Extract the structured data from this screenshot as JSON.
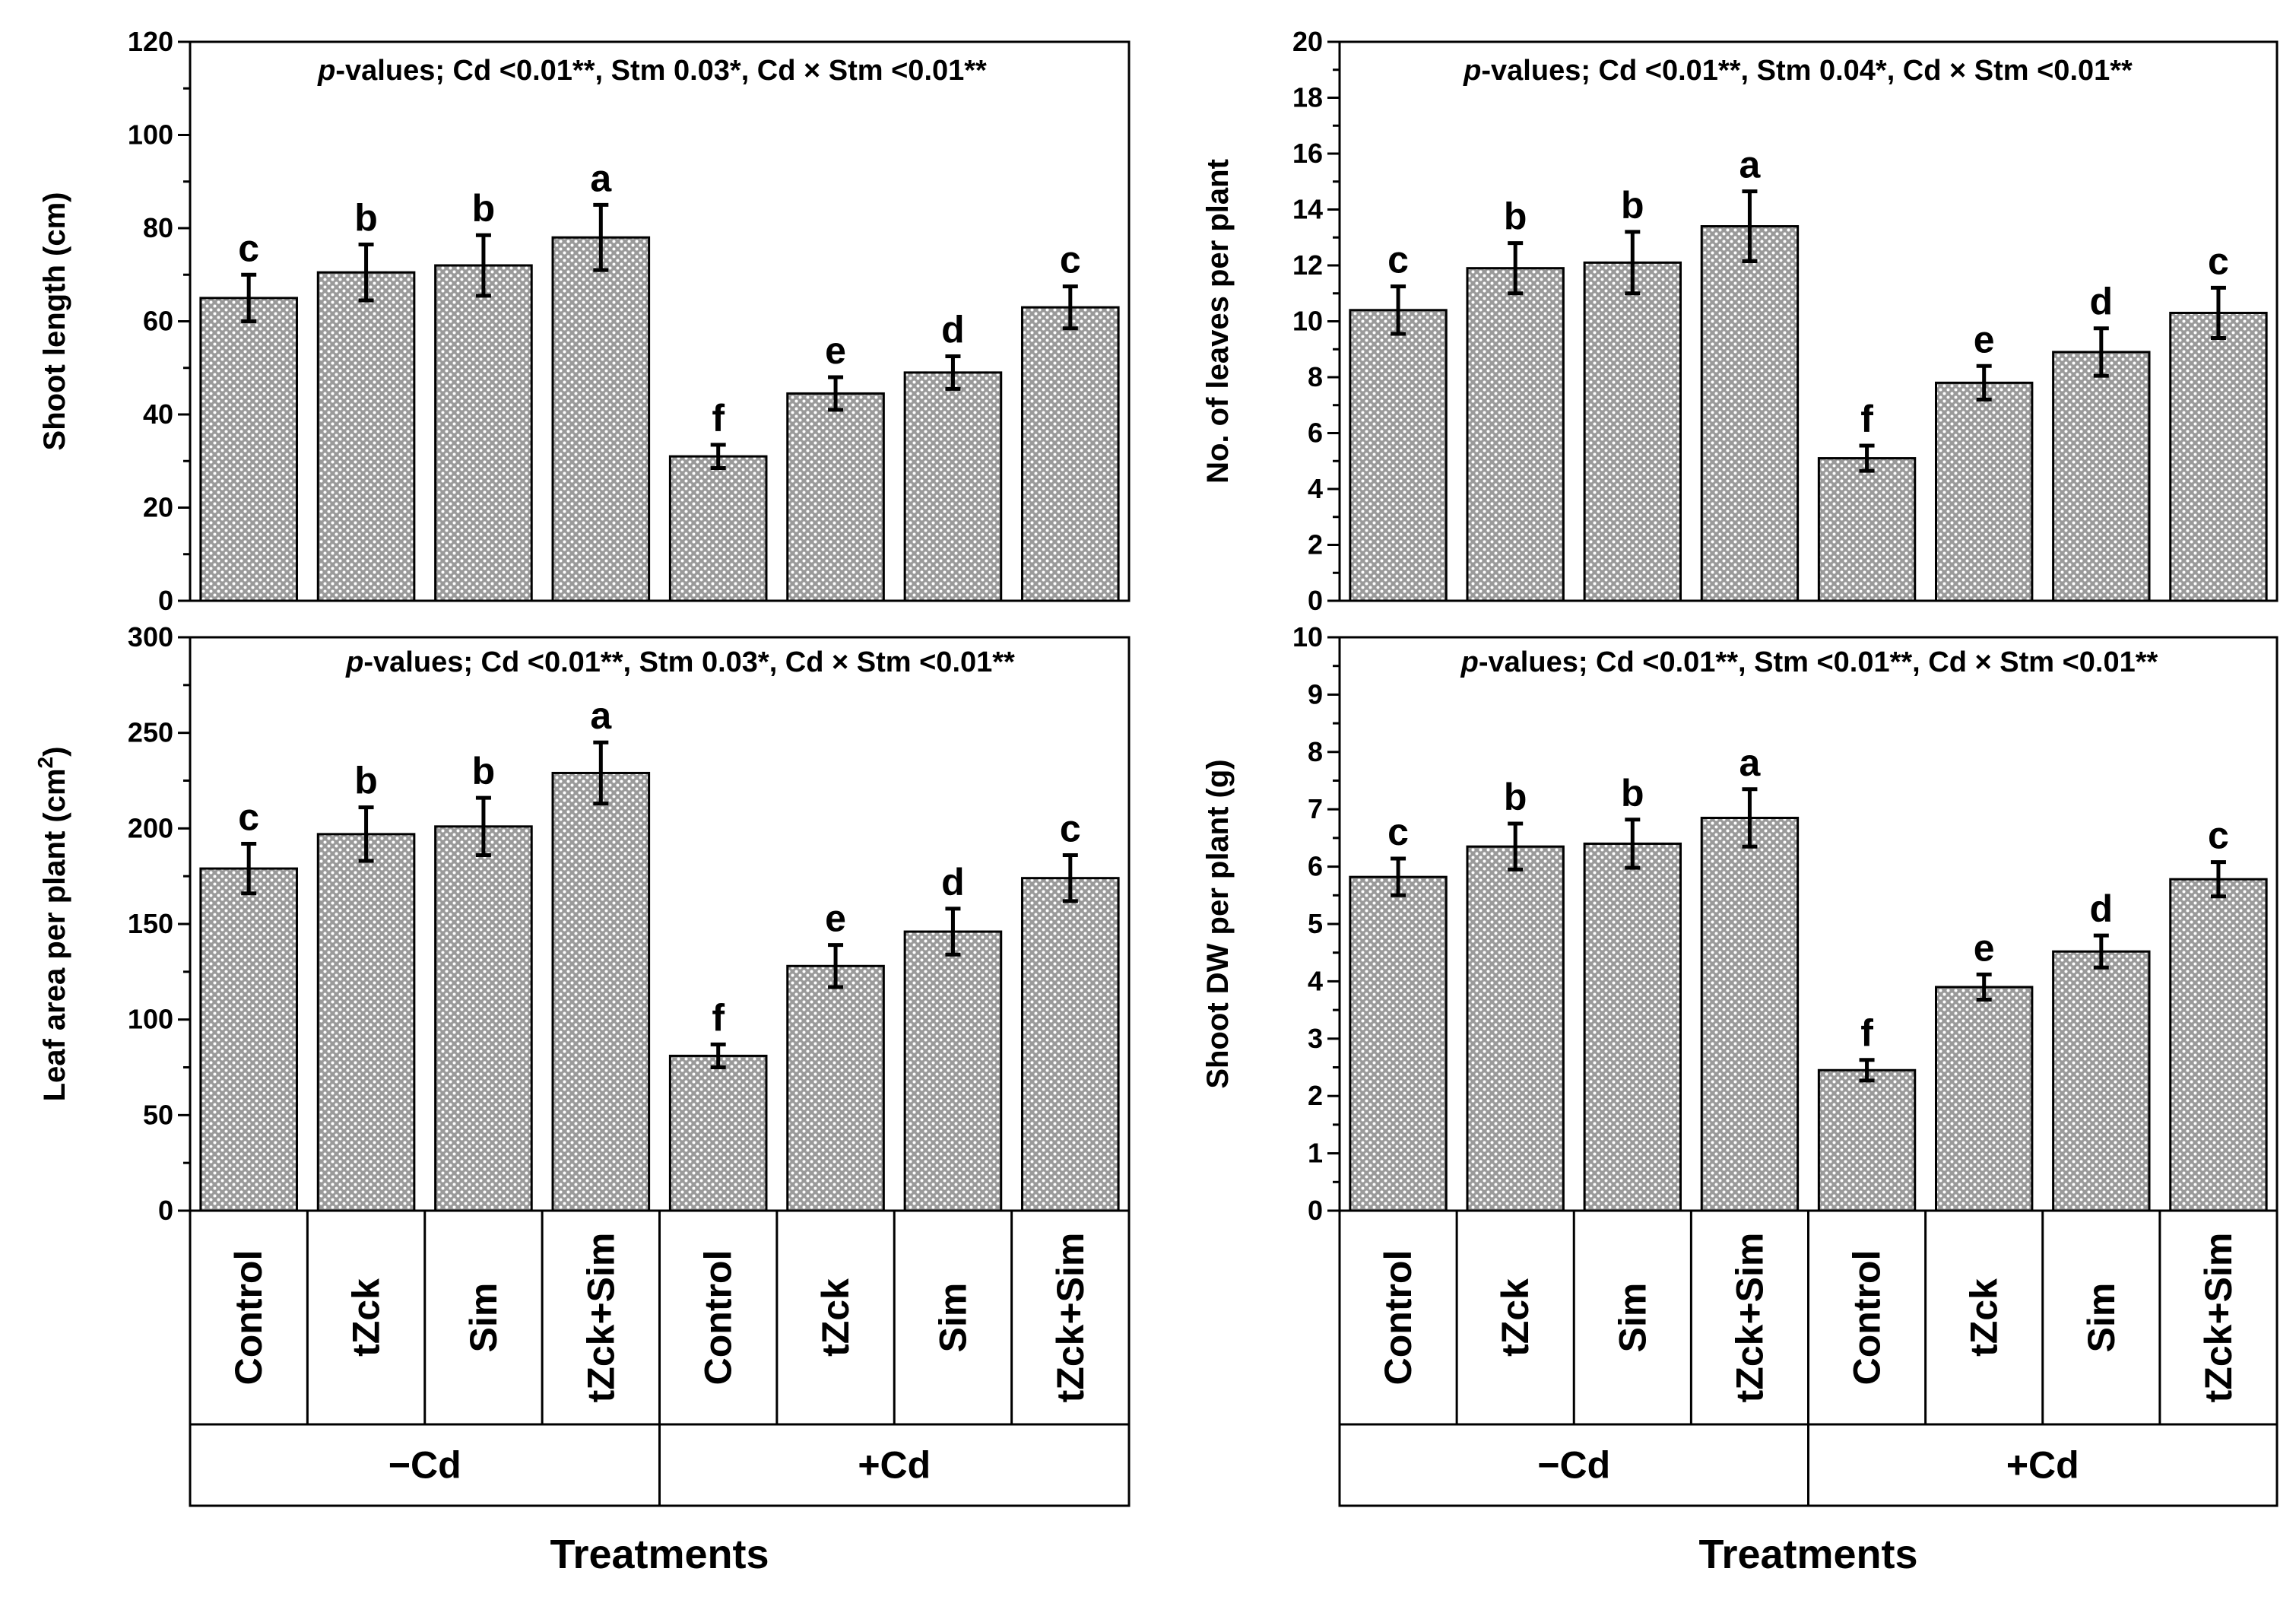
{
  "chart_data": [
    {
      "type": "bar",
      "ylabel": "Shoot length (cm)",
      "ylim": [
        0,
        120
      ],
      "ytick_step": 20,
      "ytick_labels": [
        "0",
        "20",
        "40",
        "60",
        "80",
        "100",
        "120"
      ],
      "pvalues": {
        "prefix": "p",
        "rest": "-values; Cd <0.01**, Stm 0.03*, Cd × Stm <0.01**"
      },
      "categories": [
        "Control",
        "tZck",
        "Sim",
        "tZck+Sim",
        "Control",
        "tZck",
        "Sim",
        "tZck+Sim"
      ],
      "values": [
        65,
        70.5,
        72,
        78,
        31,
        44.5,
        49,
        63
      ],
      "errors": [
        5,
        6,
        6.5,
        7,
        2.5,
        3.5,
        3.5,
        4.5
      ],
      "letters": [
        "c",
        "b",
        "b",
        "a",
        "f",
        "e",
        "d",
        "c"
      ]
    },
    {
      "type": "bar",
      "ylabel": "No. of leaves per plant",
      "ylim": [
        0,
        20
      ],
      "ytick_step": 2,
      "ytick_labels": [
        "0",
        "2",
        "4",
        "6",
        "8",
        "10",
        "12",
        "14",
        "16",
        "18",
        "20"
      ],
      "pvalues": {
        "prefix": "p",
        "rest": "-values; Cd <0.01**, Stm 0.04*, Cd × Stm <0.01**"
      },
      "categories": [
        "Control",
        "tZck",
        "Sim",
        "tZck+Sim",
        "Control",
        "tZck",
        "Sim",
        "tZck+Sim"
      ],
      "values": [
        10.4,
        11.9,
        12.1,
        13.4,
        5.1,
        7.8,
        8.9,
        10.3
      ],
      "errors": [
        0.85,
        0.9,
        1.1,
        1.25,
        0.45,
        0.6,
        0.85,
        0.9
      ],
      "letters": [
        "c",
        "b",
        "b",
        "a",
        "f",
        "e",
        "d",
        "c"
      ]
    },
    {
      "type": "bar",
      "ylabel": "Leaf area per plant (cm",
      "ylabel_sup": "2",
      "ylabel_end": ")",
      "ylim": [
        0,
        300
      ],
      "ytick_step": 50,
      "ytick_labels": [
        "0",
        "50",
        "100",
        "150",
        "200",
        "250",
        "300"
      ],
      "pvalues": {
        "prefix": "p",
        "rest": "-values; Cd <0.01**, Stm 0.03*, Cd × Stm <0.01**"
      },
      "categories": [
        "Control",
        "tZck",
        "Sim",
        "tZck+Sim",
        "Control",
        "tZck",
        "Sim",
        "tZck+Sim"
      ],
      "values": [
        179,
        197,
        201,
        229,
        81,
        128,
        146,
        174
      ],
      "errors": [
        13,
        14,
        15,
        16,
        6,
        11,
        12,
        12
      ],
      "letters": [
        "c",
        "b",
        "b",
        "a",
        "f",
        "e",
        "d",
        "c"
      ]
    },
    {
      "type": "bar",
      "ylabel": "Shoot DW per plant (g)",
      "ylim": [
        0,
        10
      ],
      "ytick_step": 1,
      "ytick_labels": [
        "0",
        "1",
        "2",
        "3",
        "4",
        "5",
        "6",
        "7",
        "8",
        "9",
        "10"
      ],
      "pvalues": {
        "prefix": "p",
        "rest": "-values; Cd <0.01**, Stm <0.01**, Cd × Stm <0.01**"
      },
      "categories": [
        "Control",
        "tZck",
        "Sim",
        "tZck+Sim",
        "Control",
        "tZck",
        "Sim",
        "tZck+Sim"
      ],
      "values": [
        5.82,
        6.35,
        6.4,
        6.85,
        2.45,
        3.9,
        4.52,
        5.78
      ],
      "errors": [
        0.32,
        0.4,
        0.42,
        0.5,
        0.18,
        0.22,
        0.28,
        0.3
      ],
      "letters": [
        "c",
        "b",
        "b",
        "a",
        "f",
        "e",
        "d",
        "c"
      ]
    }
  ],
  "x_axis": {
    "treatments": [
      "Control",
      "tZck",
      "Sim",
      "tZck+Sim",
      "Control",
      "tZck",
      "Sim",
      "tZck+Sim"
    ],
    "groups": [
      "−Cd",
      "+Cd"
    ],
    "title": "Treatments"
  },
  "colors": {
    "bar_fill": "#9a9a9a",
    "bar_dot": "#ffffff",
    "stroke": "#000000"
  }
}
